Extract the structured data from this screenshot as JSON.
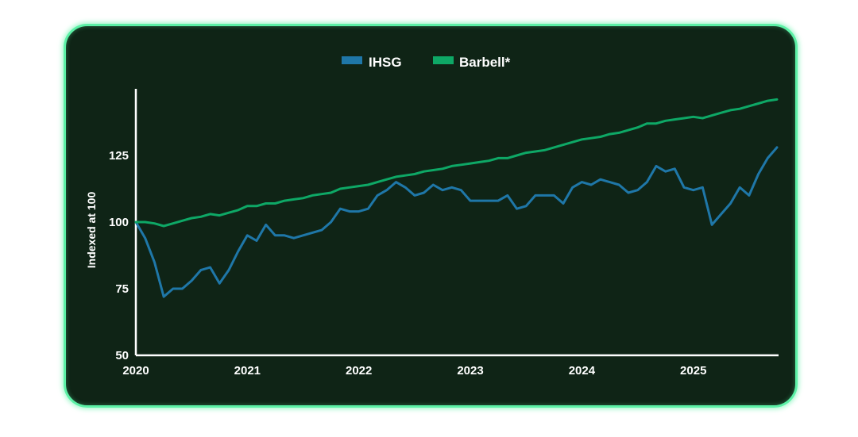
{
  "chart_data": {
    "type": "line",
    "xlabel": "",
    "ylabel": "Indexed at 100",
    "ylim": [
      50,
      150
    ],
    "yticks": [
      50,
      75,
      100,
      125
    ],
    "xlim": [
      "2020-01",
      "2025-10"
    ],
    "xticks": [
      "2020",
      "2021",
      "2022",
      "2023",
      "2024",
      "2025"
    ],
    "grid": false,
    "legend": "top-center",
    "series": [
      {
        "name": "IHSG",
        "color": "#1f77a8",
        "x": [
          "2020-01",
          "2020-02",
          "2020-03",
          "2020-04",
          "2020-05",
          "2020-06",
          "2020-07",
          "2020-08",
          "2020-09",
          "2020-10",
          "2020-11",
          "2020-12",
          "2021-01",
          "2021-02",
          "2021-03",
          "2021-04",
          "2021-05",
          "2021-06",
          "2021-07",
          "2021-08",
          "2021-09",
          "2021-10",
          "2021-11",
          "2021-12",
          "2022-01",
          "2022-02",
          "2022-03",
          "2022-04",
          "2022-05",
          "2022-06",
          "2022-07",
          "2022-08",
          "2022-09",
          "2022-10",
          "2022-11",
          "2022-12",
          "2023-01",
          "2023-02",
          "2023-03",
          "2023-04",
          "2023-05",
          "2023-06",
          "2023-07",
          "2023-08",
          "2023-09",
          "2023-10",
          "2023-11",
          "2023-12",
          "2024-01",
          "2024-02",
          "2024-03",
          "2024-04",
          "2024-05",
          "2024-06",
          "2024-07",
          "2024-08",
          "2024-09",
          "2024-10",
          "2024-11",
          "2024-12",
          "2025-01",
          "2025-02",
          "2025-03",
          "2025-04",
          "2025-05",
          "2025-06",
          "2025-07",
          "2025-08",
          "2025-09",
          "2025-10"
        ],
        "values": [
          100,
          94,
          85,
          72,
          75,
          75,
          78,
          82,
          83,
          77,
          82,
          89,
          95,
          93,
          99,
          95,
          95,
          94,
          95,
          96,
          97,
          100,
          105,
          104,
          104,
          105,
          110,
          112,
          115,
          113,
          110,
          111,
          114,
          112,
          113,
          112,
          108,
          108,
          108,
          108,
          110,
          105,
          106,
          110,
          110,
          110,
          107,
          113,
          115,
          114,
          116,
          115,
          114,
          111,
          112,
          115,
          121,
          119,
          120,
          113,
          112,
          113,
          99,
          103,
          107,
          113,
          110,
          118,
          124,
          128
        ]
      },
      {
        "name": "Barbell*",
        "color": "#0ea866",
        "x": [
          "2020-01",
          "2020-02",
          "2020-03",
          "2020-04",
          "2020-05",
          "2020-06",
          "2020-07",
          "2020-08",
          "2020-09",
          "2020-10",
          "2020-11",
          "2020-12",
          "2021-01",
          "2021-02",
          "2021-03",
          "2021-04",
          "2021-05",
          "2021-06",
          "2021-07",
          "2021-08",
          "2021-09",
          "2021-10",
          "2021-11",
          "2021-12",
          "2022-01",
          "2022-02",
          "2022-03",
          "2022-04",
          "2022-05",
          "2022-06",
          "2022-07",
          "2022-08",
          "2022-09",
          "2022-10",
          "2022-11",
          "2022-12",
          "2023-01",
          "2023-02",
          "2023-03",
          "2023-04",
          "2023-05",
          "2023-06",
          "2023-07",
          "2023-08",
          "2023-09",
          "2023-10",
          "2023-11",
          "2023-12",
          "2024-01",
          "2024-02",
          "2024-03",
          "2024-04",
          "2024-05",
          "2024-06",
          "2024-07",
          "2024-08",
          "2024-09",
          "2024-10",
          "2024-11",
          "2024-12",
          "2025-01",
          "2025-02",
          "2025-03",
          "2025-04",
          "2025-05",
          "2025-06",
          "2025-07",
          "2025-08",
          "2025-09",
          "2025-10"
        ],
        "values": [
          100,
          100,
          99.5,
          98.5,
          99.5,
          100.5,
          101.5,
          102,
          103,
          102.5,
          103.5,
          104.5,
          106,
          106,
          107,
          107,
          108,
          108.5,
          109,
          110,
          110.5,
          111,
          112.5,
          113,
          113.5,
          114,
          115,
          116,
          117,
          117.5,
          118,
          119,
          119.5,
          120,
          121,
          121.5,
          122,
          122.5,
          123,
          124,
          124,
          125,
          126,
          126.5,
          127,
          128,
          129,
          130,
          131,
          131.5,
          132,
          133,
          133.5,
          134.5,
          135.5,
          137,
          137,
          138,
          138.5,
          139,
          139.5,
          139,
          140,
          141,
          142,
          142.5,
          143.5,
          144.5,
          145.5,
          146
        ]
      }
    ]
  }
}
